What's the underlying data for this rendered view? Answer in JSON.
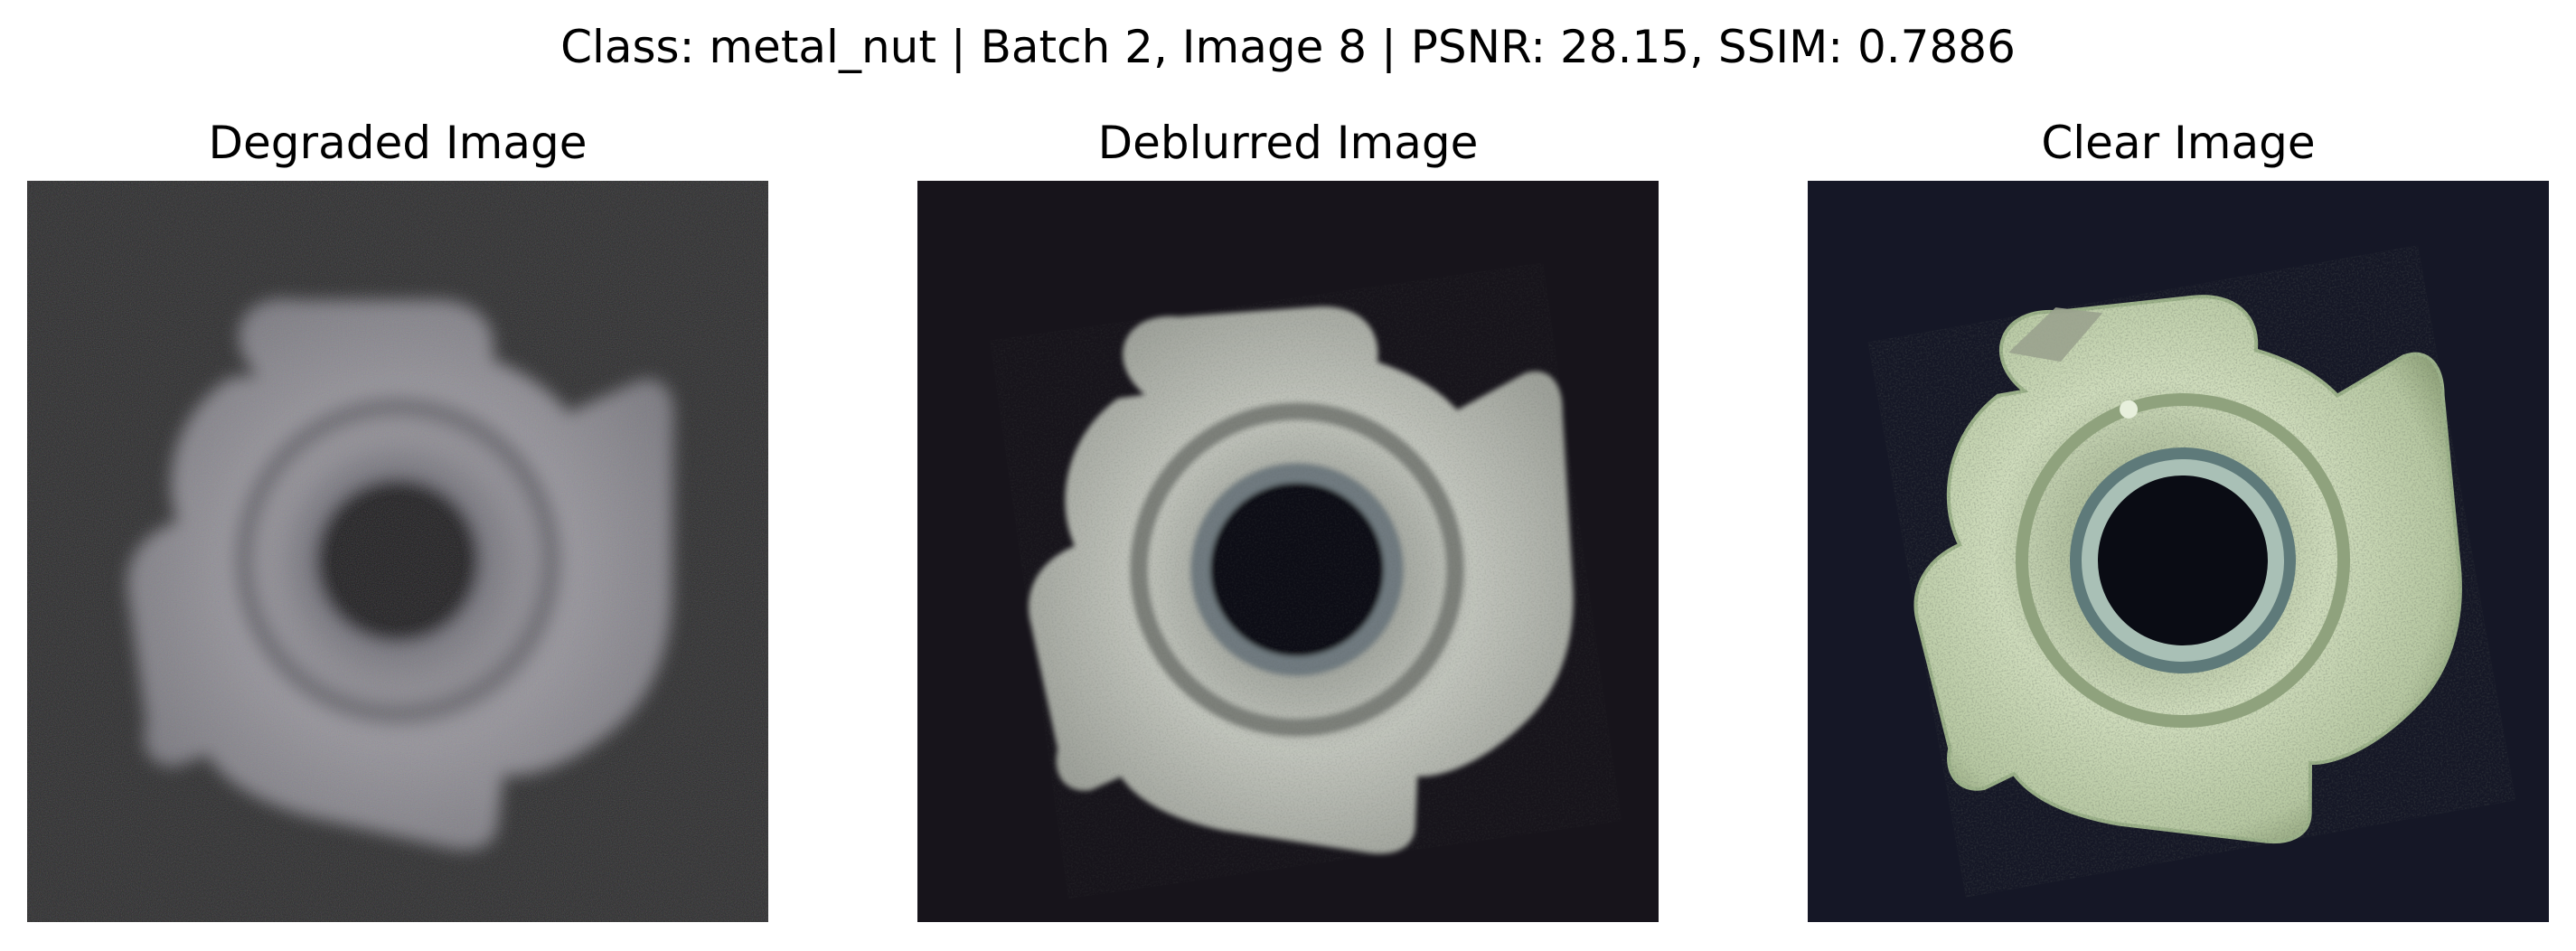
{
  "figure": {
    "suptitle": "Class: metal_nut | Batch 2, Image 8 | PSNR: 28.15, SSIM: 0.7886"
  },
  "panels": [
    {
      "title": "Degraded Image"
    },
    {
      "title": "Deblurred Image"
    },
    {
      "title": "Clear Image"
    }
  ],
  "colors": {
    "degraded_background": "#2a2b2a",
    "deblurred_background": "#17141b",
    "clear_background": "#151726",
    "degraded_metal": "#8f8f94",
    "deblurred_metal": "#b8bcb4",
    "clear_metal": "#c7d6b4"
  }
}
